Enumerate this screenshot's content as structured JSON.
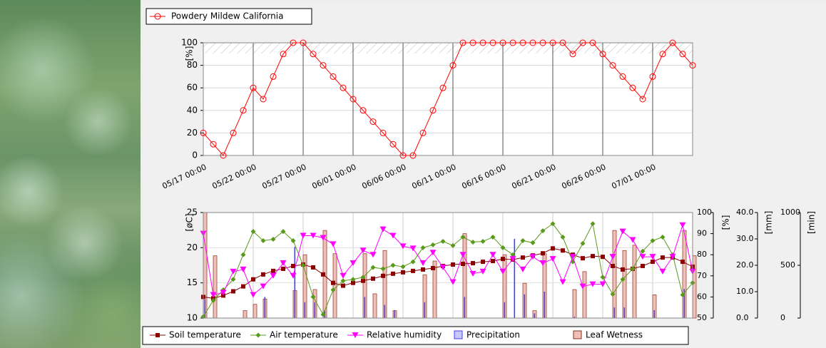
{
  "chart_data": [
    {
      "type": "line",
      "categories": [
        "05/17 00:00",
        null,
        null,
        null,
        null,
        "05/22 00:00",
        null,
        null,
        null,
        null,
        "05/27 00:00",
        null,
        null,
        null,
        null,
        "06/01 00:00",
        null,
        null,
        null,
        null,
        "06/06 00:00",
        null,
        null,
        null,
        null,
        "06/11 00:00",
        null,
        null,
        null,
        null,
        "06/16 00:00",
        null,
        null,
        null,
        null,
        "06/21 00:00",
        null,
        null,
        null,
        null,
        "06/26 00:00",
        null,
        null,
        null,
        null,
        "07/01 00:00",
        null,
        null,
        null,
        null
      ],
      "series": [
        {
          "name": "Powdery Mildew California",
          "color": "#ff0000",
          "values": [
            20,
            10,
            0,
            20,
            40,
            60,
            50,
            70,
            90,
            100,
            100,
            90,
            80,
            70,
            60,
            50,
            40,
            30,
            20,
            10,
            0,
            0,
            20,
            40,
            60,
            80,
            100,
            100,
            100,
            100,
            100,
            100,
            100,
            100,
            100,
            100,
            100,
            90,
            100,
            100,
            90,
            80,
            70,
            60,
            50,
            70,
            90,
            100,
            90,
            80
          ]
        }
      ],
      "ylabel": "[%]",
      "ylim": [
        0,
        100
      ],
      "yticks": [
        0,
        20,
        40,
        60,
        80,
        100
      ],
      "grid": true
    },
    {
      "type": "combo",
      "ylabel": "[øC]",
      "ylim": [
        10,
        25
      ],
      "yticks": [
        10,
        15,
        20,
        25
      ],
      "y2label": "[%]",
      "y2lim": [
        50,
        100
      ],
      "y2ticks": [
        50,
        60,
        70,
        80,
        90,
        100
      ],
      "y3label": "[mm]",
      "y3lim": [
        0,
        40
      ],
      "y3ticks": [
        {
          "value": 0,
          "label": "0.0"
        },
        {
          "value": 10,
          "label": "10.0"
        },
        {
          "value": 20,
          "label": "20.0"
        },
        {
          "value": 30,
          "label": "30.0"
        },
        {
          "value": 40,
          "label": "40.0"
        }
      ],
      "y4label": "[min]",
      "y4lim": [
        0,
        1000
      ],
      "y4ticks": [
        0,
        500,
        1000
      ],
      "grid": true,
      "series": [
        {
          "name": "Leaf Wetness",
          "type": "bar",
          "axis": "y4",
          "color": "#f0c0b8",
          "values": [
            1000,
            590,
            0,
            0,
            70,
            130,
            180,
            0,
            0,
            260,
            600,
            270,
            830,
            610,
            0,
            0,
            610,
            230,
            640,
            70,
            0,
            0,
            410,
            540,
            0,
            0,
            800,
            0,
            0,
            0,
            600,
            0,
            330,
            70,
            610,
            0,
            0,
            270,
            440,
            0,
            0,
            830,
            640,
            690,
            0,
            220,
            0,
            0,
            830,
            590
          ]
        },
        {
          "name": "Precipitation",
          "type": "bar",
          "axis": "y3",
          "color": "#4040ff",
          "values": [
            7,
            0,
            0,
            0,
            0,
            0,
            8,
            0,
            0,
            27,
            6,
            6,
            3,
            0,
            0,
            0,
            8,
            0,
            5,
            3,
            0,
            0,
            6,
            0,
            0,
            0,
            8,
            0,
            0,
            0,
            6,
            30,
            9,
            1.8,
            10,
            0,
            0,
            0.5,
            0,
            0,
            0,
            4,
            4,
            0,
            0,
            3,
            0,
            0,
            11,
            0
          ]
        },
        {
          "name": "Soil temperature",
          "type": "line",
          "marker": "square",
          "axis": "y",
          "color": "#8b0000",
          "values": [
            13,
            12.8,
            13.2,
            13.8,
            14.5,
            15.5,
            16.2,
            16.7,
            17,
            17.4,
            17.6,
            17.2,
            16.2,
            15,
            14.6,
            15,
            15.3,
            15.6,
            16,
            16.3,
            16.5,
            16.7,
            16.9,
            17.1,
            17.4,
            17.6,
            17.7,
            17.8,
            18,
            18.1,
            18.4,
            18.3,
            18.6,
            18.9,
            19.2,
            19.9,
            19.6,
            19,
            18.5,
            18.8,
            18.7,
            17.4,
            16.9,
            17,
            17.4,
            18,
            18.6,
            18.6,
            18,
            17.3
          ]
        },
        {
          "name": "Air temperature",
          "type": "line",
          "marker": "diamond",
          "axis": "y",
          "color": "#5a9a1a",
          "values": [
            10.2,
            12.5,
            14,
            15.5,
            19,
            22.3,
            21,
            21.2,
            22.3,
            21,
            17.5,
            13,
            10.5,
            14,
            15.3,
            15.5,
            15.8,
            17.2,
            17,
            17.5,
            17.3,
            18,
            20,
            20.4,
            20.9,
            20.3,
            21.5,
            20.8,
            20.9,
            21.5,
            20,
            19,
            21,
            20.7,
            22.4,
            23.4,
            21.5,
            18,
            20.6,
            23.4,
            15.8,
            13.4,
            15.5,
            17,
            19.5,
            21,
            21.5,
            19,
            13.3,
            15
          ]
        },
        {
          "name": "Relative humidity",
          "type": "line",
          "marker": "triangle",
          "axis": "y2",
          "color": "#ff00ff",
          "values": [
            90,
            61,
            62,
            72,
            73,
            61,
            65,
            70,
            76,
            70,
            89,
            89,
            88,
            85,
            70,
            76,
            82,
            80,
            92,
            89,
            84,
            83,
            76,
            81,
            74,
            67,
            80,
            71,
            72,
            80,
            72,
            78,
            73,
            79,
            76,
            78,
            67,
            79,
            65,
            66,
            66,
            79,
            91,
            87,
            79,
            79,
            72,
            79,
            94,
            72
          ]
        }
      ]
    }
  ]
}
